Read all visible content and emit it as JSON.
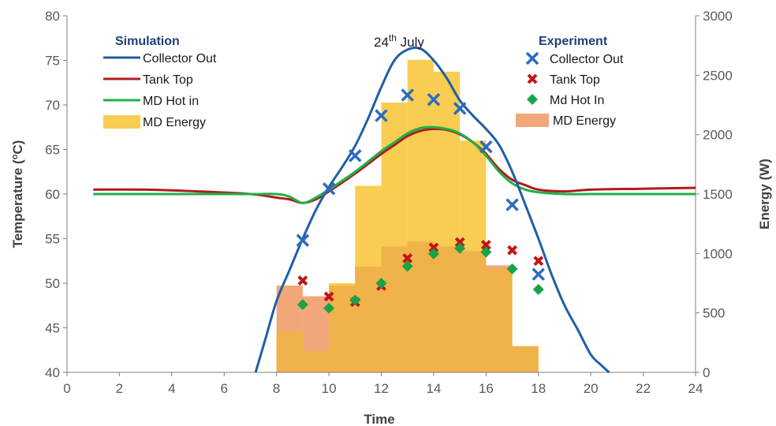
{
  "chart_data": {
    "type": "line",
    "annotation": {
      "base": "24",
      "sup": "th",
      "rest": " July"
    },
    "xlabel": "Time",
    "ylabel_left": "Temperature (",
    "ylabel_left_sup": "o",
    "ylabel_left_end": "C)",
    "ylabel_right": "Energy (W)",
    "xlim": [
      0,
      24
    ],
    "ylim_left": [
      40,
      80
    ],
    "ylim_right": [
      0,
      3000
    ],
    "x_ticks": [
      "0",
      "2",
      "4",
      "6",
      "8",
      "10",
      "12",
      "14",
      "16",
      "18",
      "20",
      "22",
      "24"
    ],
    "y_left_ticks": [
      "40",
      "45",
      "50",
      "55",
      "60",
      "65",
      "70",
      "75",
      "80"
    ],
    "y_right_ticks": [
      "0",
      "500",
      "1000",
      "1500",
      "2000",
      "2500",
      "3000"
    ],
    "grid": false,
    "colors": {
      "collector": "#1f5fa6",
      "tank": "#b01c1c",
      "mdhot": "#1fb04a",
      "sim_energy": "#f8cd52",
      "exp_energy": "#f2a77a",
      "exp_collector": "#2a6cbf",
      "exp_tank": "#c21515",
      "exp_mdhot": "#17a34a"
    },
    "legend": {
      "simulation_title": "Simulation",
      "experiment_title": "Experiment",
      "simulation": [
        "Collector Out",
        "Tank Top",
        "MD Hot in",
        "MD Energy"
      ],
      "experiment": [
        "Collector Out",
        "Tank Top",
        "Md Hot In",
        "MD Energy"
      ]
    },
    "simulation": {
      "collector_out": {
        "name": "Collector Out",
        "x": [
          7.2,
          7.6,
          8,
          8.5,
          9,
          9.5,
          10,
          10.5,
          11,
          11.5,
          12,
          12.5,
          13,
          13.5,
          14,
          14.5,
          15,
          15.5,
          16,
          16.5,
          17,
          17.5,
          18,
          18.5,
          19,
          19.5,
          20,
          20.4,
          20.7
        ],
        "y": [
          40,
          44,
          48,
          51.5,
          55,
          58.2,
          60.8,
          63,
          65.4,
          68.5,
          72,
          75,
          76.2,
          76.3,
          75,
          73,
          70.5,
          68.8,
          67.3,
          65.5,
          62.5,
          58.8,
          55,
          51,
          47.5,
          44.8,
          42,
          40.8,
          40
        ]
      },
      "tank_top": {
        "name": "Tank Top",
        "x": [
          1,
          3,
          5,
          7,
          8,
          8.5,
          9,
          9.5,
          10,
          11,
          12,
          12.5,
          13,
          13.5,
          14,
          14.5,
          15,
          15.5,
          16,
          16.5,
          17,
          17.5,
          18,
          19,
          20,
          22,
          24
        ],
        "y": [
          60.5,
          60.5,
          60.3,
          60,
          59.6,
          59.4,
          59,
          59.4,
          60.3,
          62.3,
          64.5,
          65.5,
          66.5,
          67.1,
          67.3,
          67.2,
          66.7,
          65.8,
          64.5,
          62.8,
          61.6,
          61,
          60.5,
          60.3,
          60.5,
          60.6,
          60.7
        ]
      },
      "md_hot_in": {
        "name": "MD Hot in",
        "x": [
          1,
          3,
          5,
          7,
          8,
          8.5,
          9,
          9.5,
          10,
          11,
          12,
          12.5,
          13,
          13.5,
          14,
          14.5,
          15,
          15.5,
          16,
          16.5,
          17,
          17.5,
          18,
          19,
          20,
          22,
          24
        ],
        "y": [
          60,
          60,
          60,
          60,
          60,
          59.7,
          59,
          59.6,
          60.5,
          62.5,
          64.8,
          65.8,
          66.8,
          67.4,
          67.5,
          67.3,
          66.8,
          65.8,
          64.3,
          62.5,
          61.2,
          60.5,
          60.2,
          60,
          60,
          60,
          60
        ]
      },
      "md_energy": {
        "name": "MD Energy",
        "x_start": [
          8,
          9,
          10,
          11,
          12,
          13,
          14,
          15,
          16,
          17
        ],
        "values": [
          340,
          180,
          750,
          1570,
          2270,
          2630,
          2530,
          1950,
          870,
          220
        ]
      }
    },
    "experiment": {
      "collector_out": {
        "name": "Collector Out",
        "x": [
          9,
          10,
          11,
          12,
          13,
          14,
          15,
          16,
          17,
          18
        ],
        "y": [
          54.8,
          60.6,
          64.3,
          68.8,
          71.1,
          70.6,
          69.6,
          65.3,
          58.8,
          51
        ]
      },
      "tank_top": {
        "name": "Tank Top",
        "x": [
          9,
          10,
          11,
          12,
          13,
          14,
          15,
          16,
          17,
          18
        ],
        "y": [
          50.3,
          48.5,
          47.9,
          49.7,
          52.8,
          54,
          54.6,
          54.3,
          53.7,
          52.5
        ]
      },
      "md_hot_in": {
        "name": "Md Hot In",
        "x": [
          9,
          10,
          11,
          12,
          13,
          14,
          15,
          16,
          17,
          18
        ],
        "y": [
          47.6,
          47.2,
          48.1,
          50,
          51.9,
          53.3,
          53.9,
          53.5,
          51.6,
          49.3
        ]
      },
      "md_energy": {
        "name": "MD Energy",
        "x_start": [
          8,
          9,
          10,
          11,
          12,
          13,
          14,
          15,
          16,
          17
        ],
        "values": [
          730,
          640,
          730,
          890,
          1060,
          1100,
          1060,
          1020,
          900,
          220
        ]
      }
    }
  }
}
